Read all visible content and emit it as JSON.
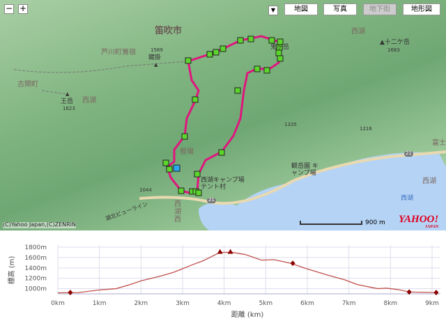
{
  "map": {
    "zoom_in": "+",
    "zoom_out": "−",
    "types": [
      {
        "label": "地図",
        "enabled": true
      },
      {
        "label": "写真",
        "enabled": true
      },
      {
        "label": "地下街",
        "enabled": false
      },
      {
        "label": "地形図",
        "enabled": true,
        "selected": true
      }
    ],
    "labels": {
      "city": "笛吹市",
      "area1": "芦川町鶯宿",
      "peak1_name": "鍵掛",
      "peak1_elev": "1589",
      "town": "古関町",
      "peak2_name": "王岳",
      "peak2_elev": "1623",
      "area2": "西湖",
      "peak3_name": "鬼ヶ岳",
      "peak4_name": "十二ケ岳",
      "peak4_elev": "1683",
      "area3": "西湖",
      "spot1": "根場",
      "camp1": "西湖キャンプ場 テント村",
      "camp2": "観岳園 キャンプ場",
      "lake": "西湖",
      "station": "西湖西",
      "road1": "21",
      "road2": "21",
      "elev1335": "1335",
      "elev1216": "1216",
      "elev1044": "1044",
      "road_name": "湖北ビューライン",
      "area4": "富士",
      "area5": "西湖"
    },
    "copyright": "(C)Yahoo Japan,(C)ZENRIN",
    "scale": "900 m",
    "logo": "YAHOO! JAPAN",
    "route_color": "#e0157d",
    "lake_color": "#b5d3f5"
  },
  "chart_data": {
    "type": "line",
    "xlabel": "距離 (km)",
    "ylabel": "標高 (m)",
    "xlim": [
      0,
      9.2
    ],
    "ylim": [
      900,
      1800
    ],
    "xticks": [
      "0km",
      "1km",
      "2km",
      "3km",
      "4km",
      "5km",
      "6km",
      "7km",
      "8km",
      "9km"
    ],
    "yticks": [
      "1000m",
      "1200m",
      "1400m",
      "1600m",
      "1800m"
    ],
    "grid": true,
    "line_color": "#c0504d",
    "x": [
      0,
      0.5,
      1,
      1.4,
      1.7,
      2,
      2.5,
      2.8,
      3.2,
      3.5,
      3.9,
      4.2,
      4.5,
      4.9,
      5.2,
      5.6,
      6,
      6.5,
      6.9,
      7.2,
      7.5,
      7.7,
      7.9,
      8.2,
      8.45,
      9.1
    ],
    "y": [
      920,
      925,
      975,
      1000,
      1070,
      1150,
      1250,
      1320,
      1450,
      1540,
      1700,
      1700,
      1660,
      1550,
      1560,
      1490,
      1380,
      1260,
      1170,
      1080,
      1030,
      1000,
      1010,
      980,
      935,
      925
    ],
    "markers": [
      {
        "x": 0.3,
        "y": 925,
        "shape": "diamond"
      },
      {
        "x": 3.9,
        "y": 1700,
        "shape": "triangle"
      },
      {
        "x": 4.15,
        "y": 1700,
        "shape": "triangle"
      },
      {
        "x": 5.65,
        "y": 1490,
        "shape": "diamond"
      },
      {
        "x": 8.45,
        "y": 935,
        "shape": "diamond"
      },
      {
        "x": 9.1,
        "y": 925,
        "shape": "diamond"
      }
    ]
  }
}
